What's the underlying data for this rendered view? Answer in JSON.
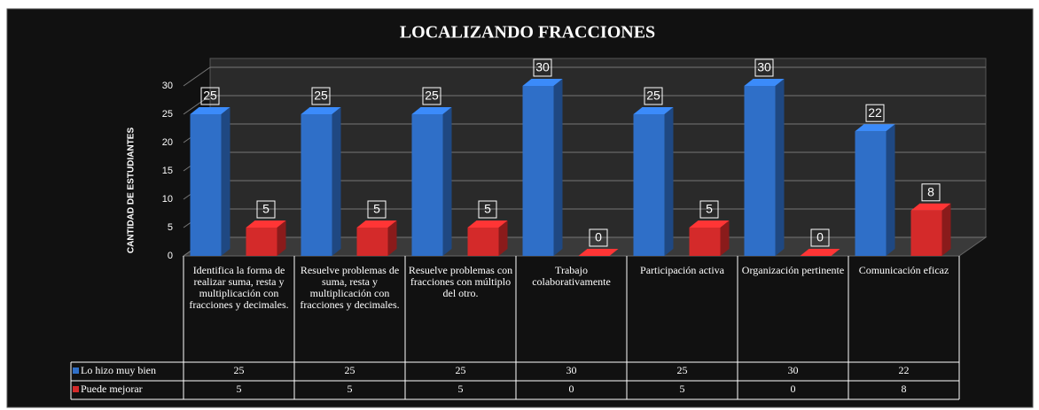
{
  "chart_data": {
    "type": "bar",
    "title": "LOCALIZANDO FRACCIONES",
    "y_label": "CANTIDAD DE ESTUDIANTES",
    "categories": [
      "Identifica la forma de realizar suma, resta y multiplicación con fracciones y decimales.",
      "Resuelve problemas de suma, resta y multiplicación con fracciones y decimales.",
      "Resuelve problemas con fracciones con múltiplo del otro.",
      "Trabajo colaborativamente",
      "Participación activa",
      "Organización pertinente",
      "Comunicación eficaz"
    ],
    "series": [
      {
        "name": "Lo hizo muy bien",
        "color": "#2f6fc8",
        "values": [
          25,
          25,
          25,
          30,
          25,
          30,
          22
        ]
      },
      {
        "name": "Puede mejorar",
        "color": "#d42a2a",
        "values": [
          5,
          5,
          5,
          0,
          5,
          0,
          8
        ]
      }
    ],
    "ylim": [
      0,
      30
    ],
    "yticks": [
      0,
      5,
      10,
      15,
      20,
      25,
      30
    ],
    "grid": true
  }
}
